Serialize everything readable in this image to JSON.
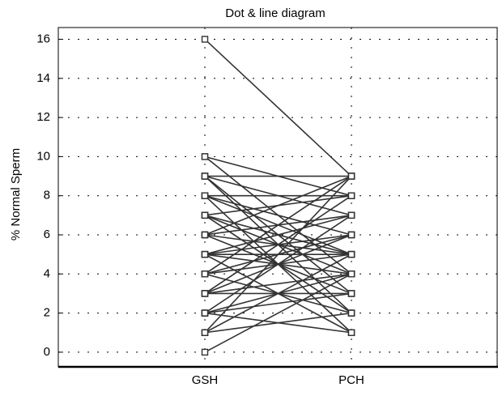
{
  "chart_data": {
    "type": "dotline",
    "title": "Dot & line diagram",
    "ylabel": "% Normal Sperm",
    "categories": [
      "GSH",
      "PCH"
    ],
    "pairs": [
      [
        16,
        9
      ],
      [
        10,
        4
      ],
      [
        10,
        8
      ],
      [
        9,
        9
      ],
      [
        9,
        3
      ],
      [
        9,
        7
      ],
      [
        8,
        1
      ],
      [
        8,
        6
      ],
      [
        8,
        5
      ],
      [
        7,
        2
      ],
      [
        7,
        8
      ],
      [
        7,
        4
      ],
      [
        6,
        9
      ],
      [
        6,
        3
      ],
      [
        6,
        5
      ],
      [
        5,
        1
      ],
      [
        5,
        7
      ],
      [
        5,
        4
      ],
      [
        5,
        6
      ],
      [
        4,
        9
      ],
      [
        4,
        2
      ],
      [
        4,
        5
      ],
      [
        3,
        8
      ],
      [
        3,
        4
      ],
      [
        3,
        6
      ],
      [
        2,
        7
      ],
      [
        2,
        1
      ],
      [
        2,
        3
      ],
      [
        1,
        5
      ],
      [
        1,
        2
      ],
      [
        1,
        9
      ],
      [
        0,
        4
      ],
      [
        5,
        5
      ],
      [
        6,
        7
      ],
      [
        4,
        6
      ],
      [
        3,
        3
      ],
      [
        7,
        5
      ],
      [
        8,
        8
      ],
      [
        2,
        4
      ],
      [
        9,
        2
      ]
    ],
    "color": "#333333",
    "ylim": [
      -0.75,
      16.6
    ],
    "yticks": [
      0,
      2,
      4,
      6,
      8,
      10,
      12,
      14,
      16
    ],
    "grid": true
  }
}
